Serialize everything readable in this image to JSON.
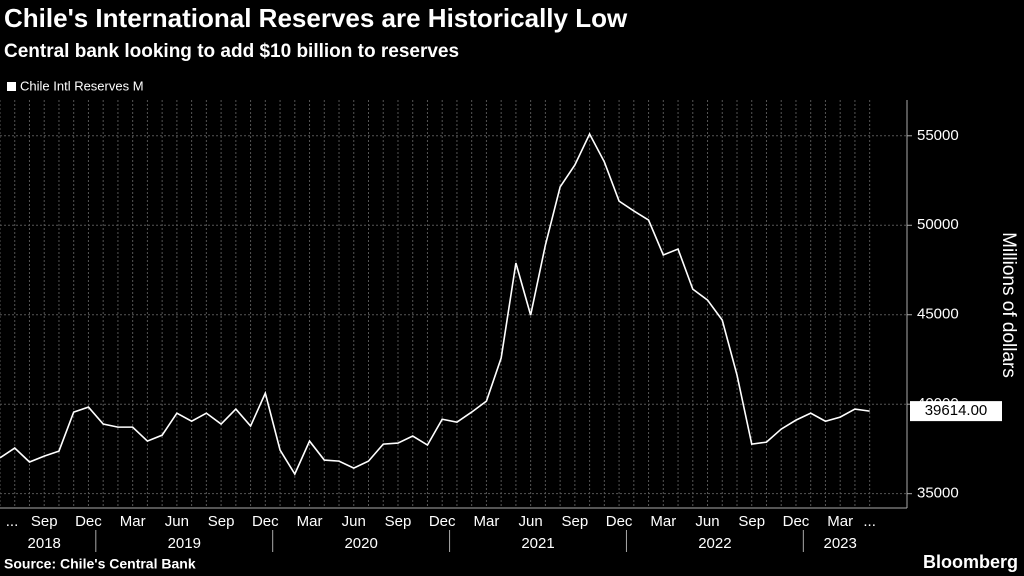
{
  "chart_data": {
    "type": "line",
    "title": "Chile's International Reserves are Historically Low",
    "subtitle": "Central bank looking to add $10 billion to reserves",
    "y_label": "Millions of dollars",
    "source": "Source: Chile's Central Bank",
    "brand": "Bloomberg",
    "categories": [
      "...",
      null,
      null,
      "Sep",
      null,
      null,
      "Dec",
      null,
      null,
      "Mar",
      null,
      null,
      "Jun",
      null,
      null,
      "Sep",
      null,
      null,
      "Dec",
      null,
      null,
      "Mar",
      null,
      null,
      "Jun",
      null,
      null,
      "Sep",
      null,
      null,
      "Dec",
      null,
      null,
      "Mar",
      null,
      null,
      "Jun",
      null,
      null,
      "Sep",
      null,
      null,
      "Dec",
      null,
      null,
      "Mar",
      null,
      null,
      "Jun",
      null,
      null,
      "Sep",
      null,
      null,
      "Dec",
      null,
      null,
      "Mar",
      null,
      "..."
    ],
    "groups": [
      {
        "label": "2018",
        "count": 7
      },
      {
        "label": "2019",
        "count": 12
      },
      {
        "label": "2020",
        "count": 12
      },
      {
        "label": "2021",
        "count": 12
      },
      {
        "label": "2022",
        "count": 12
      },
      {
        "label": "2023",
        "count": 5
      }
    ],
    "series": [
      {
        "name": "Chile Intl Reserves M",
        "color": "#ffffff",
        "values": [
          37000,
          37550,
          36770,
          37100,
          37380,
          39560,
          39840,
          38890,
          38720,
          38720,
          37940,
          38270,
          39500,
          39050,
          39500,
          38890,
          39730,
          38780,
          40620,
          37440,
          36100,
          37940,
          36880,
          36820,
          36430,
          36820,
          37770,
          37830,
          38220,
          37720,
          39160,
          39000,
          39560,
          40170,
          42580,
          47890,
          44980,
          48890,
          52140,
          53370,
          55100,
          53540,
          51350,
          50800,
          50290,
          48340,
          48670,
          46430,
          45820,
          44700,
          41630,
          37770,
          37880,
          38610,
          39110,
          39500,
          39050,
          39280,
          39730,
          39614
        ],
        "value_labels": [
          null,
          null,
          null,
          null,
          null,
          null,
          null,
          null,
          null,
          null,
          null,
          null,
          null,
          null,
          null,
          null,
          null,
          null,
          null,
          null,
          null,
          null,
          null,
          null,
          null,
          null,
          null,
          null,
          null,
          null,
          null,
          null,
          null,
          null,
          null,
          null,
          null,
          null,
          null,
          null,
          null,
          null,
          null,
          null,
          null,
          null,
          null,
          null,
          null,
          null,
          null,
          null,
          null,
          null,
          null,
          null,
          null,
          null,
          null,
          "39614.00"
        ]
      }
    ],
    "ylim": [
      34200,
      57000
    ],
    "yticks": [
      35000,
      40000,
      45000,
      50000,
      55000
    ],
    "grid": true
  }
}
